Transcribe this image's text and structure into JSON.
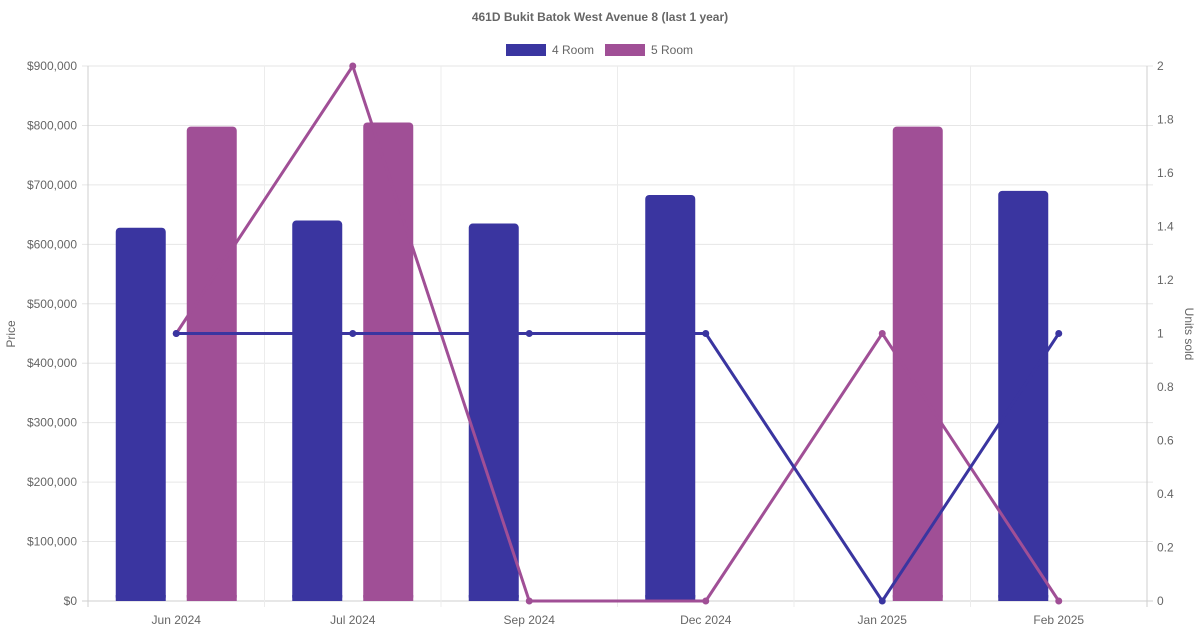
{
  "chart_data": {
    "type": "bar",
    "title": "461D Bukit Batok West Avenue 8 (last 1 year)",
    "categories": [
      "Jun 2024",
      "Jul 2024",
      "Sep 2024",
      "Dec 2024",
      "Jan 2025",
      "Feb 2025"
    ],
    "ylabel_left": "Price",
    "ylabel_right": "Units sold",
    "ylim_left": [
      0,
      900000
    ],
    "ylim_right": [
      0,
      2
    ],
    "left_ticks": [
      "$0",
      "$100,000",
      "$200,000",
      "$300,000",
      "$400,000",
      "$500,000",
      "$600,000",
      "$700,000",
      "$800,000",
      "$900,000"
    ],
    "right_ticks": [
      "0",
      "0.2",
      "0.4",
      "0.6",
      "0.8",
      "1",
      "1.2",
      "1.4",
      "1.6",
      "1.8",
      "2"
    ],
    "legend_position": "top-center",
    "grid": true,
    "series": [
      {
        "name": "4 Room",
        "color": "#3a35a0",
        "price": [
          628000,
          640000,
          635000,
          683000,
          null,
          690000
        ],
        "units": [
          1,
          1,
          1,
          1,
          0,
          1
        ]
      },
      {
        "name": "5 Room",
        "color": "#a04f96",
        "price": [
          798000,
          805000,
          null,
          null,
          798000,
          null
        ],
        "units": [
          1,
          2,
          0,
          0,
          1,
          0
        ]
      }
    ]
  }
}
